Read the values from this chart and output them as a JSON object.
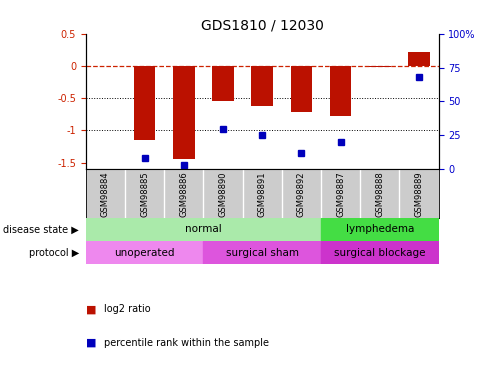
{
  "title": "GDS1810 / 12030",
  "samples": [
    "GSM98884",
    "GSM98885",
    "GSM98886",
    "GSM98890",
    "GSM98891",
    "GSM98892",
    "GSM98887",
    "GSM98888",
    "GSM98889"
  ],
  "log2_ratio": [
    0.0,
    -1.15,
    -1.45,
    -0.55,
    -0.62,
    -0.72,
    -0.78,
    -0.02,
    0.22
  ],
  "percentile_rank": [
    null,
    8,
    3,
    30,
    25,
    12,
    20,
    null,
    68
  ],
  "ylim_left": [
    -1.6,
    0.5
  ],
  "ylim_right": [
    0,
    100
  ],
  "yticks_left": [
    0.5,
    0.0,
    -0.5,
    -1.0,
    -1.5
  ],
  "ytick_labels_left": [
    "0.5",
    "0",
    "-0.5",
    "-1",
    "-1.5"
  ],
  "yticks_right": [
    100,
    75,
    50,
    25,
    0
  ],
  "ytick_labels_right": [
    "100%",
    "75",
    "50",
    "25",
    "0"
  ],
  "disease_state_groups": [
    {
      "label": "normal",
      "start": 0,
      "end": 6,
      "color": "#aaeaaa"
    },
    {
      "label": "lymphedema",
      "start": 6,
      "end": 9,
      "color": "#44dd44"
    }
  ],
  "protocol_groups": [
    {
      "label": "unoperated",
      "start": 0,
      "end": 3,
      "color": "#ee88ee"
    },
    {
      "label": "surgical sham",
      "start": 3,
      "end": 6,
      "color": "#dd55dd"
    },
    {
      "label": "surgical blockage",
      "start": 6,
      "end": 9,
      "color": "#cc33cc"
    }
  ],
  "bar_color": "#bb1100",
  "dot_color": "#0000bb",
  "zero_line_color": "#cc2200",
  "grid_color": "#000000",
  "bg_color": "#ffffff",
  "tick_label_color_left": "#cc2200",
  "tick_label_color_right": "#0000cc",
  "title_fontsize": 10,
  "bar_width": 0.55,
  "sample_bg_color": "#cccccc",
  "sample_div_color": "#ffffff"
}
